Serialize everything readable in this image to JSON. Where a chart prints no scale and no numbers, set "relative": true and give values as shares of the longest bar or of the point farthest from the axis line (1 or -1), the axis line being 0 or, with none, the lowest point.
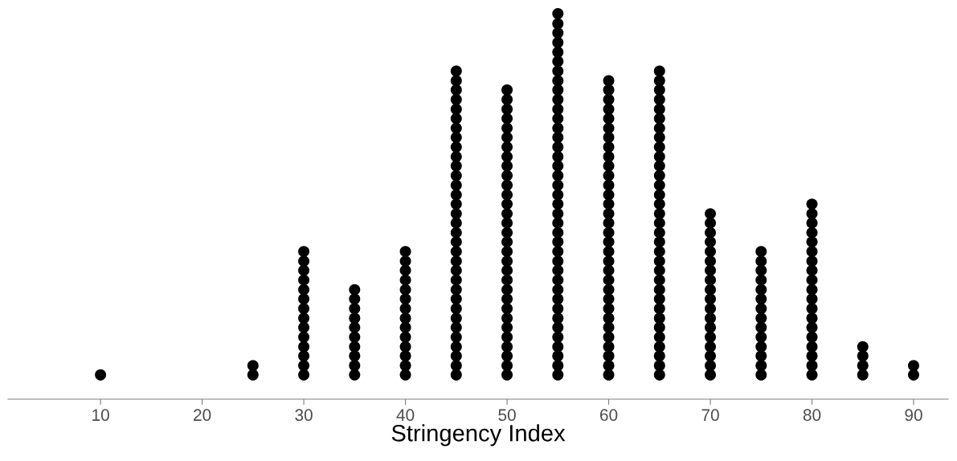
{
  "chart_data": {
    "type": "scatter",
    "xlabel": "Stringency Index",
    "relative": true,
    "color": "#000000",
    "marker": "circle",
    "series": [
      {
        "x": [
          10
        ],
        "values": [
          0.063
        ]
      },
      {
        "x": [
          25,
          25
        ],
        "values": [
          0.063,
          0.087
        ]
      },
      {
        "x": [
          30,
          30,
          30,
          30,
          30,
          30,
          30,
          30,
          30,
          30,
          30,
          30,
          30,
          30
        ],
        "values": [
          0.063,
          0.087,
          0.112,
          0.136,
          0.161,
          0.186,
          0.21,
          0.235,
          0.26,
          0.284,
          0.309,
          0.334,
          0.358,
          0.383
        ]
      },
      {
        "x": [
          35,
          35,
          35,
          35,
          35,
          35,
          35,
          35,
          35,
          35
        ],
        "values": [
          0.063,
          0.087,
          0.112,
          0.136,
          0.161,
          0.186,
          0.21,
          0.235,
          0.26,
          0.284
        ]
      },
      {
        "x": [
          40,
          40,
          40,
          40,
          40,
          40,
          40,
          40,
          40,
          40,
          40,
          40,
          40,
          40
        ],
        "values": [
          0.063,
          0.087,
          0.112,
          0.136,
          0.161,
          0.186,
          0.21,
          0.235,
          0.26,
          0.284,
          0.309,
          0.334,
          0.358,
          0.383
        ]
      },
      {
        "x": [
          45,
          45,
          45,
          45,
          45,
          45,
          45,
          45,
          45,
          45,
          45,
          45,
          45,
          45,
          45,
          45,
          45,
          45,
          45,
          45,
          45,
          45,
          45,
          45,
          45,
          45,
          45,
          45,
          45,
          45,
          45,
          45,
          45
        ],
        "values": [
          0.063,
          0.087,
          0.112,
          0.136,
          0.161,
          0.186,
          0.21,
          0.235,
          0.26,
          0.284,
          0.309,
          0.334,
          0.358,
          0.383,
          0.408,
          0.432,
          0.457,
          0.481,
          0.506,
          0.53,
          0.555,
          0.58,
          0.605,
          0.629,
          0.654,
          0.679,
          0.703,
          0.728,
          0.752,
          0.777,
          0.802,
          0.826,
          0.851
        ]
      },
      {
        "x": [
          50,
          50,
          50,
          50,
          50,
          50,
          50,
          50,
          50,
          50,
          50,
          50,
          50,
          50,
          50,
          50,
          50,
          50,
          50,
          50,
          50,
          50,
          50,
          50,
          50,
          50,
          50,
          50,
          50,
          50,
          50
        ],
        "values": [
          0.063,
          0.087,
          0.112,
          0.136,
          0.161,
          0.186,
          0.21,
          0.235,
          0.26,
          0.284,
          0.309,
          0.334,
          0.358,
          0.383,
          0.408,
          0.432,
          0.457,
          0.481,
          0.506,
          0.53,
          0.555,
          0.58,
          0.605,
          0.629,
          0.654,
          0.679,
          0.703,
          0.728,
          0.752,
          0.777,
          0.802
        ]
      },
      {
        "x": [
          55,
          55,
          55,
          55,
          55,
          55,
          55,
          55,
          55,
          55,
          55,
          55,
          55,
          55,
          55,
          55,
          55,
          55,
          55,
          55,
          55,
          55,
          55,
          55,
          55,
          55,
          55,
          55,
          55,
          55,
          55,
          55,
          55,
          55,
          55,
          55,
          55,
          55,
          55
        ],
        "values": [
          0.063,
          0.087,
          0.112,
          0.136,
          0.161,
          0.186,
          0.21,
          0.235,
          0.26,
          0.284,
          0.309,
          0.334,
          0.358,
          0.383,
          0.408,
          0.432,
          0.457,
          0.481,
          0.506,
          0.53,
          0.555,
          0.58,
          0.605,
          0.629,
          0.654,
          0.679,
          0.703,
          0.728,
          0.752,
          0.777,
          0.802,
          0.826,
          0.851,
          0.876,
          0.9,
          0.925,
          0.95,
          0.974,
          1
        ]
      },
      {
        "x": [
          60,
          60,
          60,
          60,
          60,
          60,
          60,
          60,
          60,
          60,
          60,
          60,
          60,
          60,
          60,
          60,
          60,
          60,
          60,
          60,
          60,
          60,
          60,
          60,
          60,
          60,
          60,
          60,
          60,
          60,
          60,
          60
        ],
        "values": [
          0.063,
          0.087,
          0.112,
          0.136,
          0.161,
          0.186,
          0.21,
          0.235,
          0.26,
          0.284,
          0.309,
          0.334,
          0.358,
          0.383,
          0.408,
          0.432,
          0.457,
          0.481,
          0.506,
          0.53,
          0.555,
          0.58,
          0.605,
          0.629,
          0.654,
          0.679,
          0.703,
          0.728,
          0.752,
          0.777,
          0.802,
          0.826
        ]
      },
      {
        "x": [
          65,
          65,
          65,
          65,
          65,
          65,
          65,
          65,
          65,
          65,
          65,
          65,
          65,
          65,
          65,
          65,
          65,
          65,
          65,
          65,
          65,
          65,
          65,
          65,
          65,
          65,
          65,
          65,
          65,
          65,
          65,
          65,
          65
        ],
        "values": [
          0.063,
          0.087,
          0.112,
          0.136,
          0.161,
          0.186,
          0.21,
          0.235,
          0.26,
          0.284,
          0.309,
          0.334,
          0.358,
          0.383,
          0.408,
          0.432,
          0.457,
          0.481,
          0.506,
          0.53,
          0.555,
          0.58,
          0.605,
          0.629,
          0.654,
          0.679,
          0.703,
          0.728,
          0.752,
          0.777,
          0.802,
          0.826,
          0.851
        ]
      },
      {
        "x": [
          70,
          70,
          70,
          70,
          70,
          70,
          70,
          70,
          70,
          70,
          70,
          70,
          70,
          70,
          70,
          70,
          70,
          70
        ],
        "values": [
          0.063,
          0.087,
          0.112,
          0.136,
          0.161,
          0.186,
          0.21,
          0.235,
          0.26,
          0.284,
          0.309,
          0.334,
          0.358,
          0.383,
          0.408,
          0.432,
          0.457,
          0.481
        ]
      },
      {
        "x": [
          75,
          75,
          75,
          75,
          75,
          75,
          75,
          75,
          75,
          75,
          75,
          75,
          75,
          75
        ],
        "values": [
          0.063,
          0.087,
          0.112,
          0.136,
          0.161,
          0.186,
          0.21,
          0.235,
          0.26,
          0.284,
          0.309,
          0.334,
          0.358,
          0.383
        ]
      },
      {
        "x": [
          80,
          80,
          80,
          80,
          80,
          80,
          80,
          80,
          80,
          80,
          80,
          80,
          80,
          80,
          80,
          80,
          80,
          80,
          80
        ],
        "values": [
          0.063,
          0.087,
          0.112,
          0.136,
          0.161,
          0.186,
          0.21,
          0.235,
          0.26,
          0.284,
          0.309,
          0.334,
          0.358,
          0.383,
          0.408,
          0.432,
          0.457,
          0.481,
          0.506
        ]
      },
      {
        "x": [
          85,
          85,
          85,
          85
        ],
        "values": [
          0.063,
          0.087,
          0.112,
          0.136
        ]
      },
      {
        "x": [
          90,
          90
        ],
        "values": [
          0.063,
          0.087
        ]
      }
    ],
    "xlim": [
      0.9,
      93.4
    ],
    "xticks": [
      10,
      20,
      30,
      40,
      50,
      60,
      70,
      80,
      90
    ],
    "tick_labels": "x"
  }
}
